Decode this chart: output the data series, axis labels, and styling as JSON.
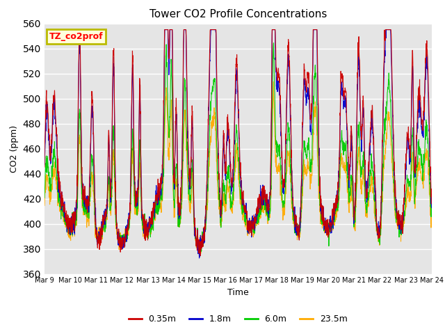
{
  "title": "Tower CO2 Profile Concentrations",
  "xlabel": "Time",
  "ylabel": "CO2 (ppm)",
  "ylim": [
    360,
    560
  ],
  "yticks": [
    360,
    380,
    400,
    420,
    440,
    460,
    480,
    500,
    520,
    540,
    560
  ],
  "xstart": 9,
  "xend": 24,
  "bg_color": "#e5e5e5",
  "legend_label": "TZ_co2prof",
  "legend_box_facecolor": "#ffffdd",
  "legend_box_edgecolor": "#bbbb00",
  "series": [
    {
      "label": "0.35m",
      "color": "#cc0000",
      "spike_scale": 1.0,
      "base_scale": 1.0
    },
    {
      "label": "1.8m",
      "color": "#0000cc",
      "spike_scale": 0.92,
      "base_scale": 0.95
    },
    {
      "label": "6.0m",
      "color": "#00cc00",
      "spike_scale": 0.55,
      "base_scale": 0.75
    },
    {
      "label": "23.5m",
      "color": "#ffaa00",
      "spike_scale": 0.42,
      "base_scale": 0.65
    }
  ]
}
